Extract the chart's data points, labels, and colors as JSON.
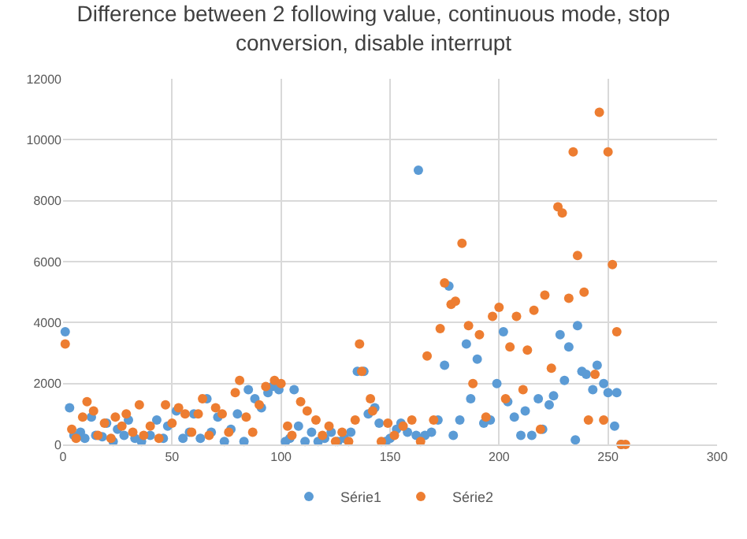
{
  "chart_data": {
    "type": "scatter",
    "title": "Difference between 2 following value, continuous mode, stop conversion, disable interrupt",
    "xlim": [
      0,
      300
    ],
    "xticks": [
      0,
      50,
      100,
      150,
      200,
      250,
      300
    ],
    "ylim": [
      0,
      12000
    ],
    "yticks": [
      0,
      2000,
      4000,
      6000,
      8000,
      10000,
      12000
    ],
    "grid": true,
    "legend": "bottom",
    "marker": "circle",
    "series": [
      {
        "name": "Série1",
        "color": "#5b9bd5",
        "x": [
          1,
          3,
          5,
          8,
          10,
          13,
          15,
          18,
          20,
          23,
          25,
          28,
          30,
          33,
          36,
          40,
          43,
          46,
          48,
          52,
          55,
          58,
          60,
          63,
          66,
          68,
          71,
          74,
          77,
          80,
          83,
          85,
          88,
          91,
          94,
          96,
          99,
          102,
          104,
          106,
          108,
          111,
          114,
          117,
          120,
          123,
          126,
          129,
          132,
          135,
          138,
          140,
          143,
          145,
          148,
          150,
          153,
          155,
          158,
          162,
          163,
          166,
          169,
          172,
          175,
          177,
          179,
          182,
          185,
          187,
          190,
          193,
          196,
          199,
          202,
          204,
          207,
          210,
          212,
          215,
          218,
          220,
          223,
          225,
          228,
          230,
          232,
          235,
          236,
          238,
          240,
          243,
          245,
          248,
          250,
          253,
          254,
          256
        ],
        "values": [
          3700,
          1200,
          300,
          400,
          200,
          900,
          300,
          250,
          700,
          100,
          500,
          300,
          800,
          200,
          100,
          300,
          800,
          200,
          600,
          1100,
          200,
          400,
          1000,
          200,
          1500,
          400,
          900,
          100,
          500,
          1000,
          100,
          1800,
          1500,
          1200,
          1700,
          1900,
          1800,
          100,
          200,
          1800,
          600,
          100,
          400,
          100,
          200,
          400,
          100,
          200,
          400,
          2400,
          2400,
          1000,
          1200,
          700,
          100,
          200,
          500,
          700,
          400,
          300,
          9000,
          300,
          400,
          800,
          2600,
          5200,
          300,
          800,
          3300,
          1500,
          2800,
          700,
          800,
          2000,
          3700,
          1400,
          900,
          300,
          1100,
          300,
          1500,
          500,
          1300,
          1600,
          3600,
          2100,
          3200,
          150,
          3900,
          2400,
          2300,
          1800,
          2600,
          2000,
          1700,
          600,
          1700,
          0
        ]
      },
      {
        "name": "Série2",
        "color": "#ed7d31",
        "x": [
          1,
          4,
          6,
          9,
          11,
          14,
          16,
          19,
          22,
          24,
          27,
          29,
          32,
          35,
          37,
          40,
          44,
          47,
          50,
          53,
          56,
          59,
          62,
          64,
          67,
          70,
          73,
          76,
          79,
          81,
          84,
          87,
          90,
          93,
          97,
          100,
          103,
          105,
          109,
          112,
          116,
          119,
          122,
          125,
          128,
          131,
          134,
          136,
          137,
          141,
          142,
          146,
          149,
          152,
          156,
          160,
          164,
          167,
          170,
          173,
          175,
          178,
          180,
          183,
          186,
          188,
          191,
          194,
          197,
          200,
          203,
          205,
          208,
          211,
          213,
          216,
          219,
          221,
          224,
          227,
          229,
          232,
          234,
          236,
          239,
          241,
          244,
          246,
          248,
          250,
          252,
          254,
          256,
          258
        ],
        "values": [
          3300,
          500,
          200,
          900,
          1400,
          1100,
          300,
          700,
          200,
          900,
          600,
          1000,
          400,
          1300,
          300,
          600,
          200,
          1300,
          700,
          1200,
          1000,
          400,
          1000,
          1500,
          300,
          1200,
          1000,
          400,
          1700,
          2100,
          900,
          400,
          1300,
          1900,
          2100,
          2000,
          600,
          300,
          1400,
          1100,
          800,
          300,
          600,
          100,
          400,
          100,
          800,
          3300,
          2400,
          1500,
          1100,
          100,
          700,
          300,
          600,
          800,
          100,
          2900,
          800,
          3800,
          5300,
          4600,
          4700,
          6600,
          3900,
          2000,
          3600,
          900,
          4200,
          4500,
          1500,
          3200,
          4200,
          1800,
          3100,
          4400,
          500,
          4900,
          2500,
          7800,
          7600,
          4800,
          9600,
          6200,
          5000,
          800,
          2300,
          10900,
          800,
          9600,
          5900,
          3700,
          0,
          0
        ]
      }
    ]
  }
}
